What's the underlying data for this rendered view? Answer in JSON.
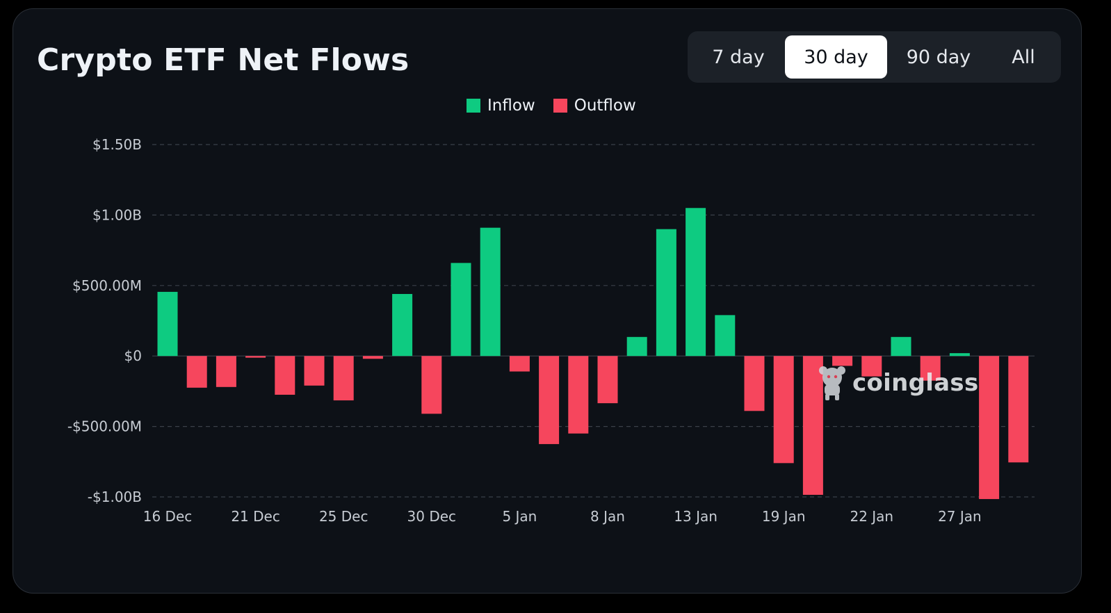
{
  "title": "Crypto ETF Net Flows",
  "period_tabs": [
    {
      "label": "7 day",
      "active": false
    },
    {
      "label": "30 day",
      "active": true
    },
    {
      "label": "90 day",
      "active": false
    },
    {
      "label": "All",
      "active": false
    }
  ],
  "legend": {
    "inflow": {
      "label": "Inflow",
      "color": "#0ecb81"
    },
    "outflow": {
      "label": "Outflow",
      "color": "#f6465d"
    }
  },
  "watermark": "coinglass",
  "chart_data": {
    "type": "bar",
    "title": "Crypto ETF Net Flows",
    "xlabel": "",
    "ylabel": "",
    "ylim": [
      -1000000000,
      1500000000
    ],
    "grid": true,
    "legend_position": "top-center",
    "y_ticks": [
      {
        "value": 1500000000,
        "label": "$1.50B"
      },
      {
        "value": 1000000000,
        "label": "$1.00B"
      },
      {
        "value": 500000000,
        "label": "$500.00M"
      },
      {
        "value": 0,
        "label": "$0"
      },
      {
        "value": -500000000,
        "label": "-$500.00M"
      },
      {
        "value": -1000000000,
        "label": "-$1.00B"
      }
    ],
    "x_ticks": [
      {
        "index": 0,
        "label": "16 Dec"
      },
      {
        "index": 3,
        "label": "21 Dec"
      },
      {
        "index": 6,
        "label": "25 Dec"
      },
      {
        "index": 9,
        "label": "30 Dec"
      },
      {
        "index": 12,
        "label": "5 Jan"
      },
      {
        "index": 15,
        "label": "8 Jan"
      },
      {
        "index": 18,
        "label": "13 Jan"
      },
      {
        "index": 21,
        "label": "19 Jan"
      },
      {
        "index": 24,
        "label": "22 Jan"
      },
      {
        "index": 27,
        "label": "27 Jan"
      }
    ],
    "series": [
      {
        "name": "Net Flow",
        "values": [
          455000000,
          -225000000,
          -220000000,
          -12000000,
          -275000000,
          -210000000,
          -315000000,
          -20000000,
          440000000,
          -410000000,
          660000000,
          910000000,
          -110000000,
          -625000000,
          -550000000,
          -335000000,
          135000000,
          900000000,
          1050000000,
          290000000,
          -390000000,
          -760000000,
          -985000000,
          -70000000,
          -145000000,
          135000000,
          -175000000,
          20000000,
          -1015000000,
          -755000000
        ]
      }
    ]
  }
}
